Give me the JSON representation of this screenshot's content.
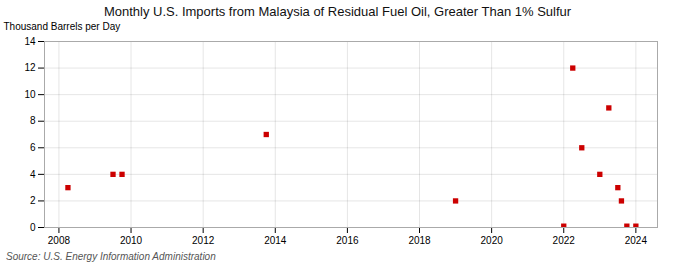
{
  "chart_data": {
    "type": "scatter",
    "title": "Monthly U.S. Imports from Malaysia of Residual Fuel Oil, Greater Than 1% Sulfur",
    "ylabel": "Thousand Barrels per Day",
    "source": "Source: U.S. Energy Information Administration",
    "x": [
      2008.25,
      2009.5,
      2009.75,
      2013.75,
      2019.0,
      2022.0,
      2022.25,
      2022.5,
      2023.0,
      2023.25,
      2023.5,
      2023.6,
      2023.75,
      2024.0
    ],
    "values": [
      3.0,
      4.0,
      4.0,
      7.0,
      2.0,
      0.1,
      12.0,
      6.0,
      4.0,
      9.0,
      3.0,
      2.0,
      0.1,
      0.1
    ],
    "color": "#cc0000",
    "marker": "square",
    "xlim": [
      2007.6,
      2024.6
    ],
    "ylim": [
      0,
      14
    ],
    "xticks": [
      2008,
      2010,
      2012,
      2014,
      2016,
      2018,
      2020,
      2022,
      2024
    ],
    "yticks": [
      0,
      2,
      4,
      6,
      8,
      10,
      12,
      14
    ],
    "grid": true
  }
}
